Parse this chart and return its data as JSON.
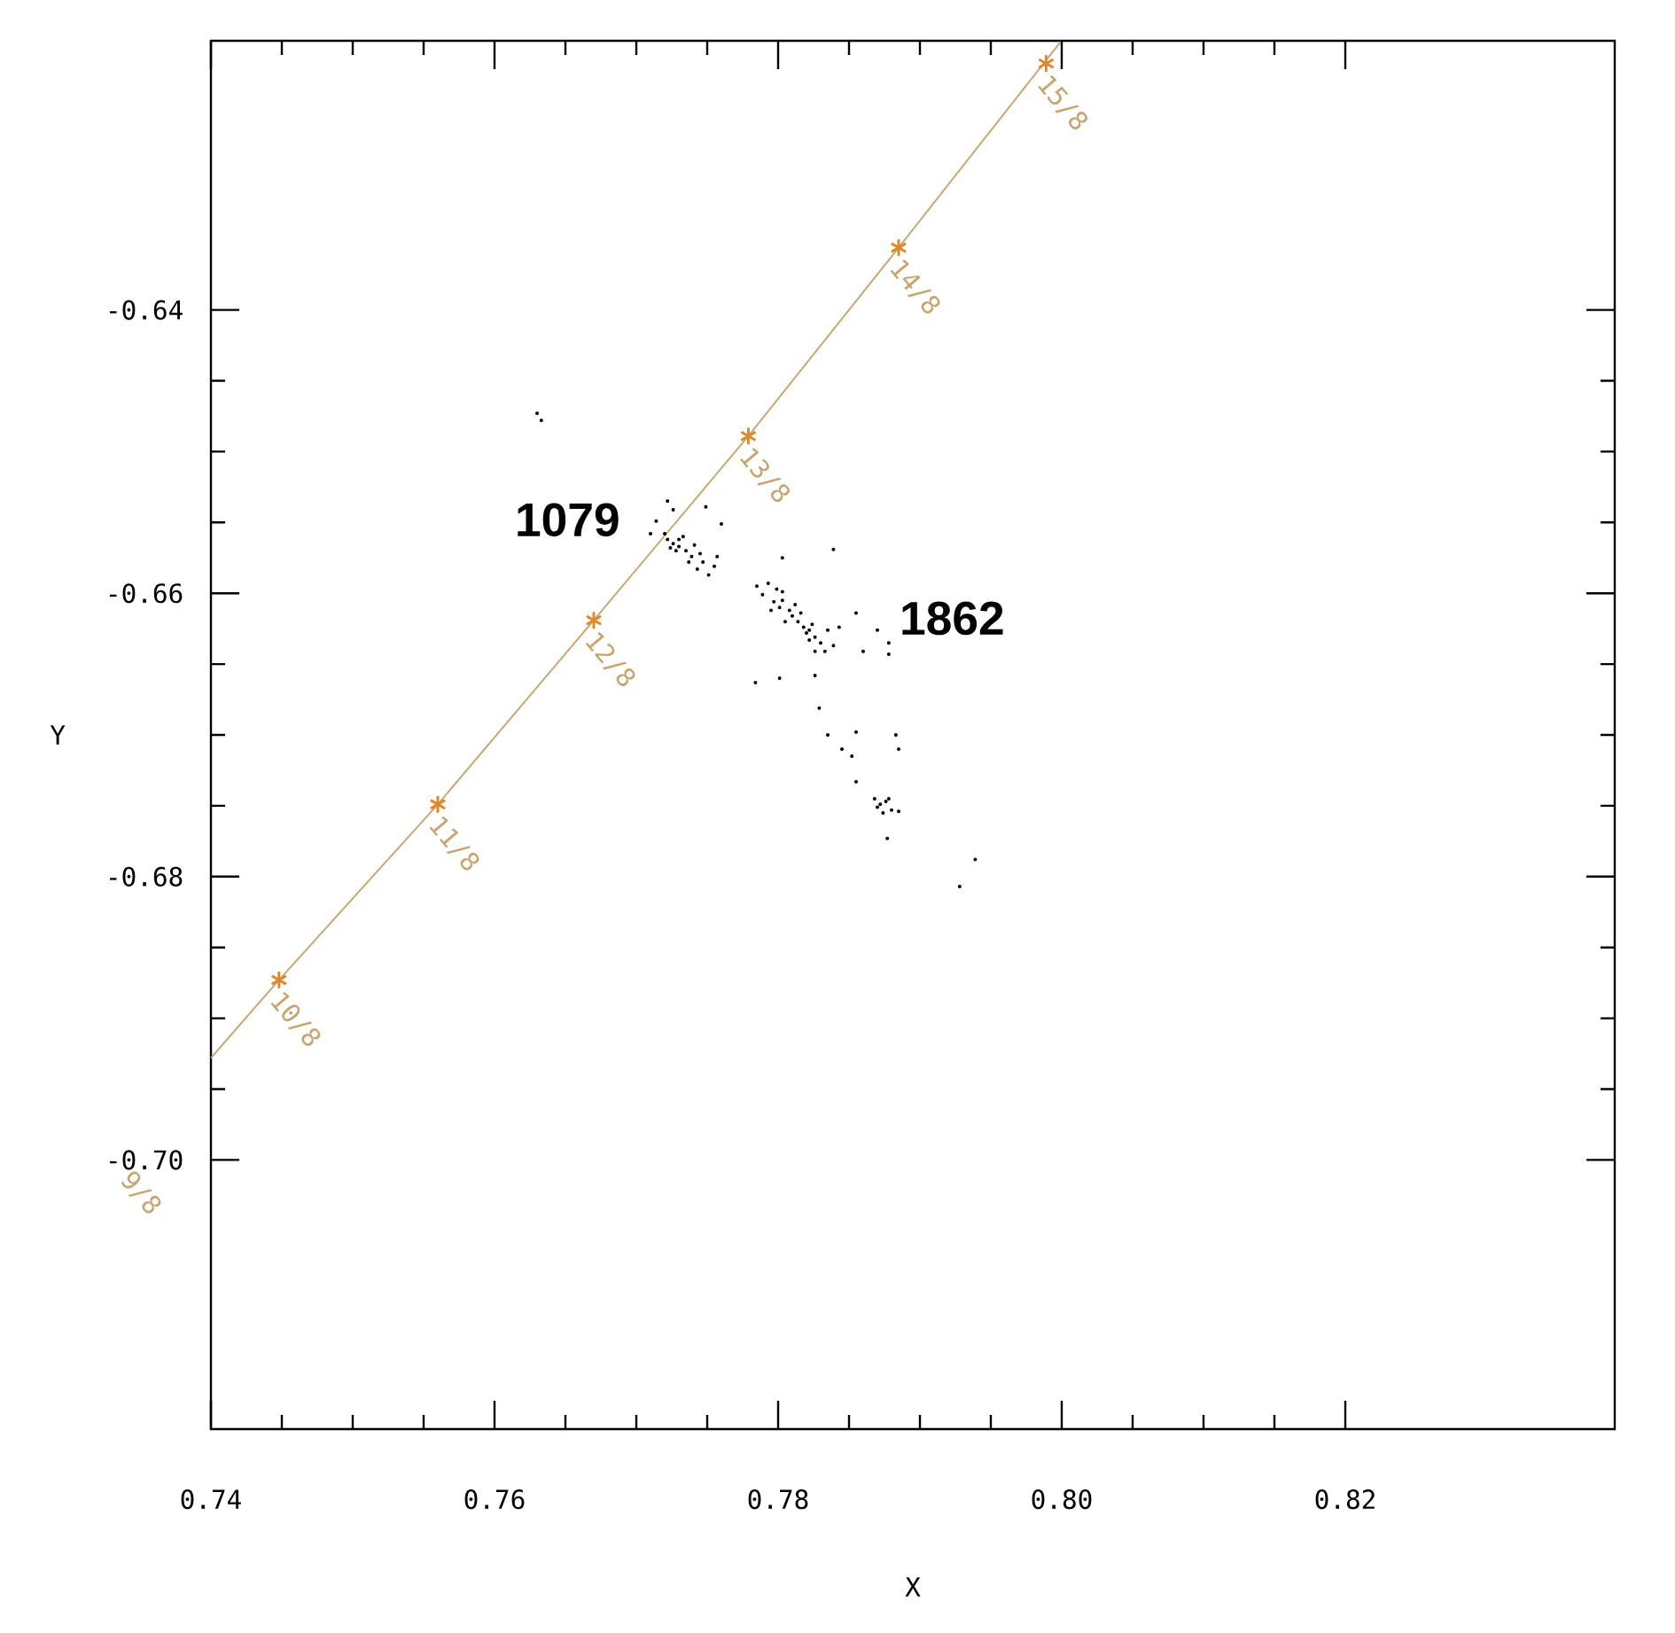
{
  "chart_data": {
    "type": "scatter",
    "xlabel": "X",
    "ylabel": "Y",
    "xlim": [
      0.74,
      0.839
    ],
    "ylim": [
      -0.719,
      -0.621
    ],
    "xticks": [
      0.74,
      0.76,
      0.78,
      {
        "value": 0.8,
        "label": "0.80"
      },
      0.82
    ],
    "yticks": [
      -0.64,
      -0.66,
      -0.68,
      {
        "value": -0.7,
        "label": "-0.70"
      }
    ],
    "series": [
      {
        "type": "line",
        "color": "#c9a36b",
        "marker": "none",
        "x": [
          0.74,
          0.7448,
          0.756,
          0.767,
          0.7779,
          0.7885,
          0.7999
        ],
        "values": [
          -0.6928,
          -0.6873,
          -0.6749,
          -0.6619,
          -0.6489,
          -0.6356,
          -0.6211
        ]
      },
      {
        "type": "scatter",
        "color": "#e0872a",
        "marker": "cross",
        "x": [
          0.7448,
          0.756,
          0.767,
          0.7779,
          0.7885,
          0.7989
        ],
        "values": [
          -0.6873,
          -0.6749,
          -0.6619,
          -0.6489,
          -0.6356,
          -0.6226
        ]
      },
      {
        "type": "scatter",
        "color": "#000000",
        "marker": "circle",
        "x": [
          0.7714,
          0.7722,
          0.7726,
          0.772,
          0.773,
          0.7735,
          0.7739,
          0.7743,
          0.7747,
          0.7751,
          0.7755,
          0.776,
          0.7749,
          0.7733,
          0.7724,
          0.7741,
          0.7745,
          0.7737,
          0.7728,
          0.7722,
          0.771,
          0.7757,
          0.7726,
          0.773,
          0.7785,
          0.7789,
          0.7793,
          0.7797,
          0.7801,
          0.7803,
          0.7808,
          0.781,
          0.7814,
          0.7816,
          0.7818,
          0.782,
          0.7822,
          0.7826,
          0.783,
          0.7835,
          0.7839,
          0.7833,
          0.7824,
          0.7812,
          0.7799,
          0.7795,
          0.7805,
          0.7826,
          0.7803,
          0.7822,
          0.7843,
          0.7855,
          0.786,
          0.787,
          0.7878,
          0.7878,
          0.7803,
          0.7784,
          0.7801,
          0.7826,
          0.7829,
          0.7839,
          0.7835,
          0.7855,
          0.7883,
          0.7845,
          0.7852,
          0.7885,
          0.7855,
          0.7868,
          0.7872,
          0.7876,
          0.788,
          0.7874,
          0.787,
          0.7885,
          0.7877,
          0.7878,
          0.763,
          0.7633,
          0.7939,
          0.7928
        ],
        "values": [
          -0.6549,
          -0.6535,
          -0.6541,
          -0.6558,
          -0.6562,
          -0.657,
          -0.6574,
          -0.6583,
          -0.6578,
          -0.6587,
          -0.6581,
          -0.6551,
          -0.6539,
          -0.656,
          -0.6568,
          -0.6566,
          -0.6572,
          -0.6578,
          -0.657,
          -0.6562,
          -0.6558,
          -0.6574,
          -0.6565,
          -0.6567,
          -0.6595,
          -0.6601,
          -0.6593,
          -0.6606,
          -0.661,
          -0.6599,
          -0.6612,
          -0.6616,
          -0.662,
          -0.6614,
          -0.6624,
          -0.6628,
          -0.6633,
          -0.6631,
          -0.6635,
          -0.6626,
          -0.6637,
          -0.6641,
          -0.6622,
          -0.6608,
          -0.6597,
          -0.6612,
          -0.662,
          -0.6641,
          -0.6605,
          -0.6626,
          -0.6624,
          -0.6614,
          -0.6641,
          -0.6626,
          -0.6643,
          -0.6635,
          -0.6575,
          -0.6663,
          -0.666,
          -0.6658,
          -0.6681,
          -0.6569,
          -0.67,
          -0.6698,
          -0.67,
          -0.671,
          -0.6715,
          -0.671,
          -0.6733,
          -0.6745,
          -0.6749,
          -0.6747,
          -0.6753,
          -0.6755,
          -0.6751,
          -0.6754,
          -0.6773,
          -0.6745,
          -0.6473,
          -0.6478,
          -0.6788,
          -0.6807
        ]
      }
    ],
    "annotations": [
      {
        "text": "10/8",
        "x": 0.7448,
        "y": -0.6873
      },
      {
        "text": "11/8",
        "x": 0.756,
        "y": -0.6749
      },
      {
        "text": "12/8",
        "x": 0.767,
        "y": -0.6619
      },
      {
        "text": "13/8",
        "x": 0.7779,
        "y": -0.6489
      },
      {
        "text": "14/8",
        "x": 0.7885,
        "y": -0.6356
      },
      {
        "text": "15/8",
        "x": 0.7989,
        "y": -0.6226
      },
      "1079",
      "1862",
      "9/8"
    ]
  }
}
